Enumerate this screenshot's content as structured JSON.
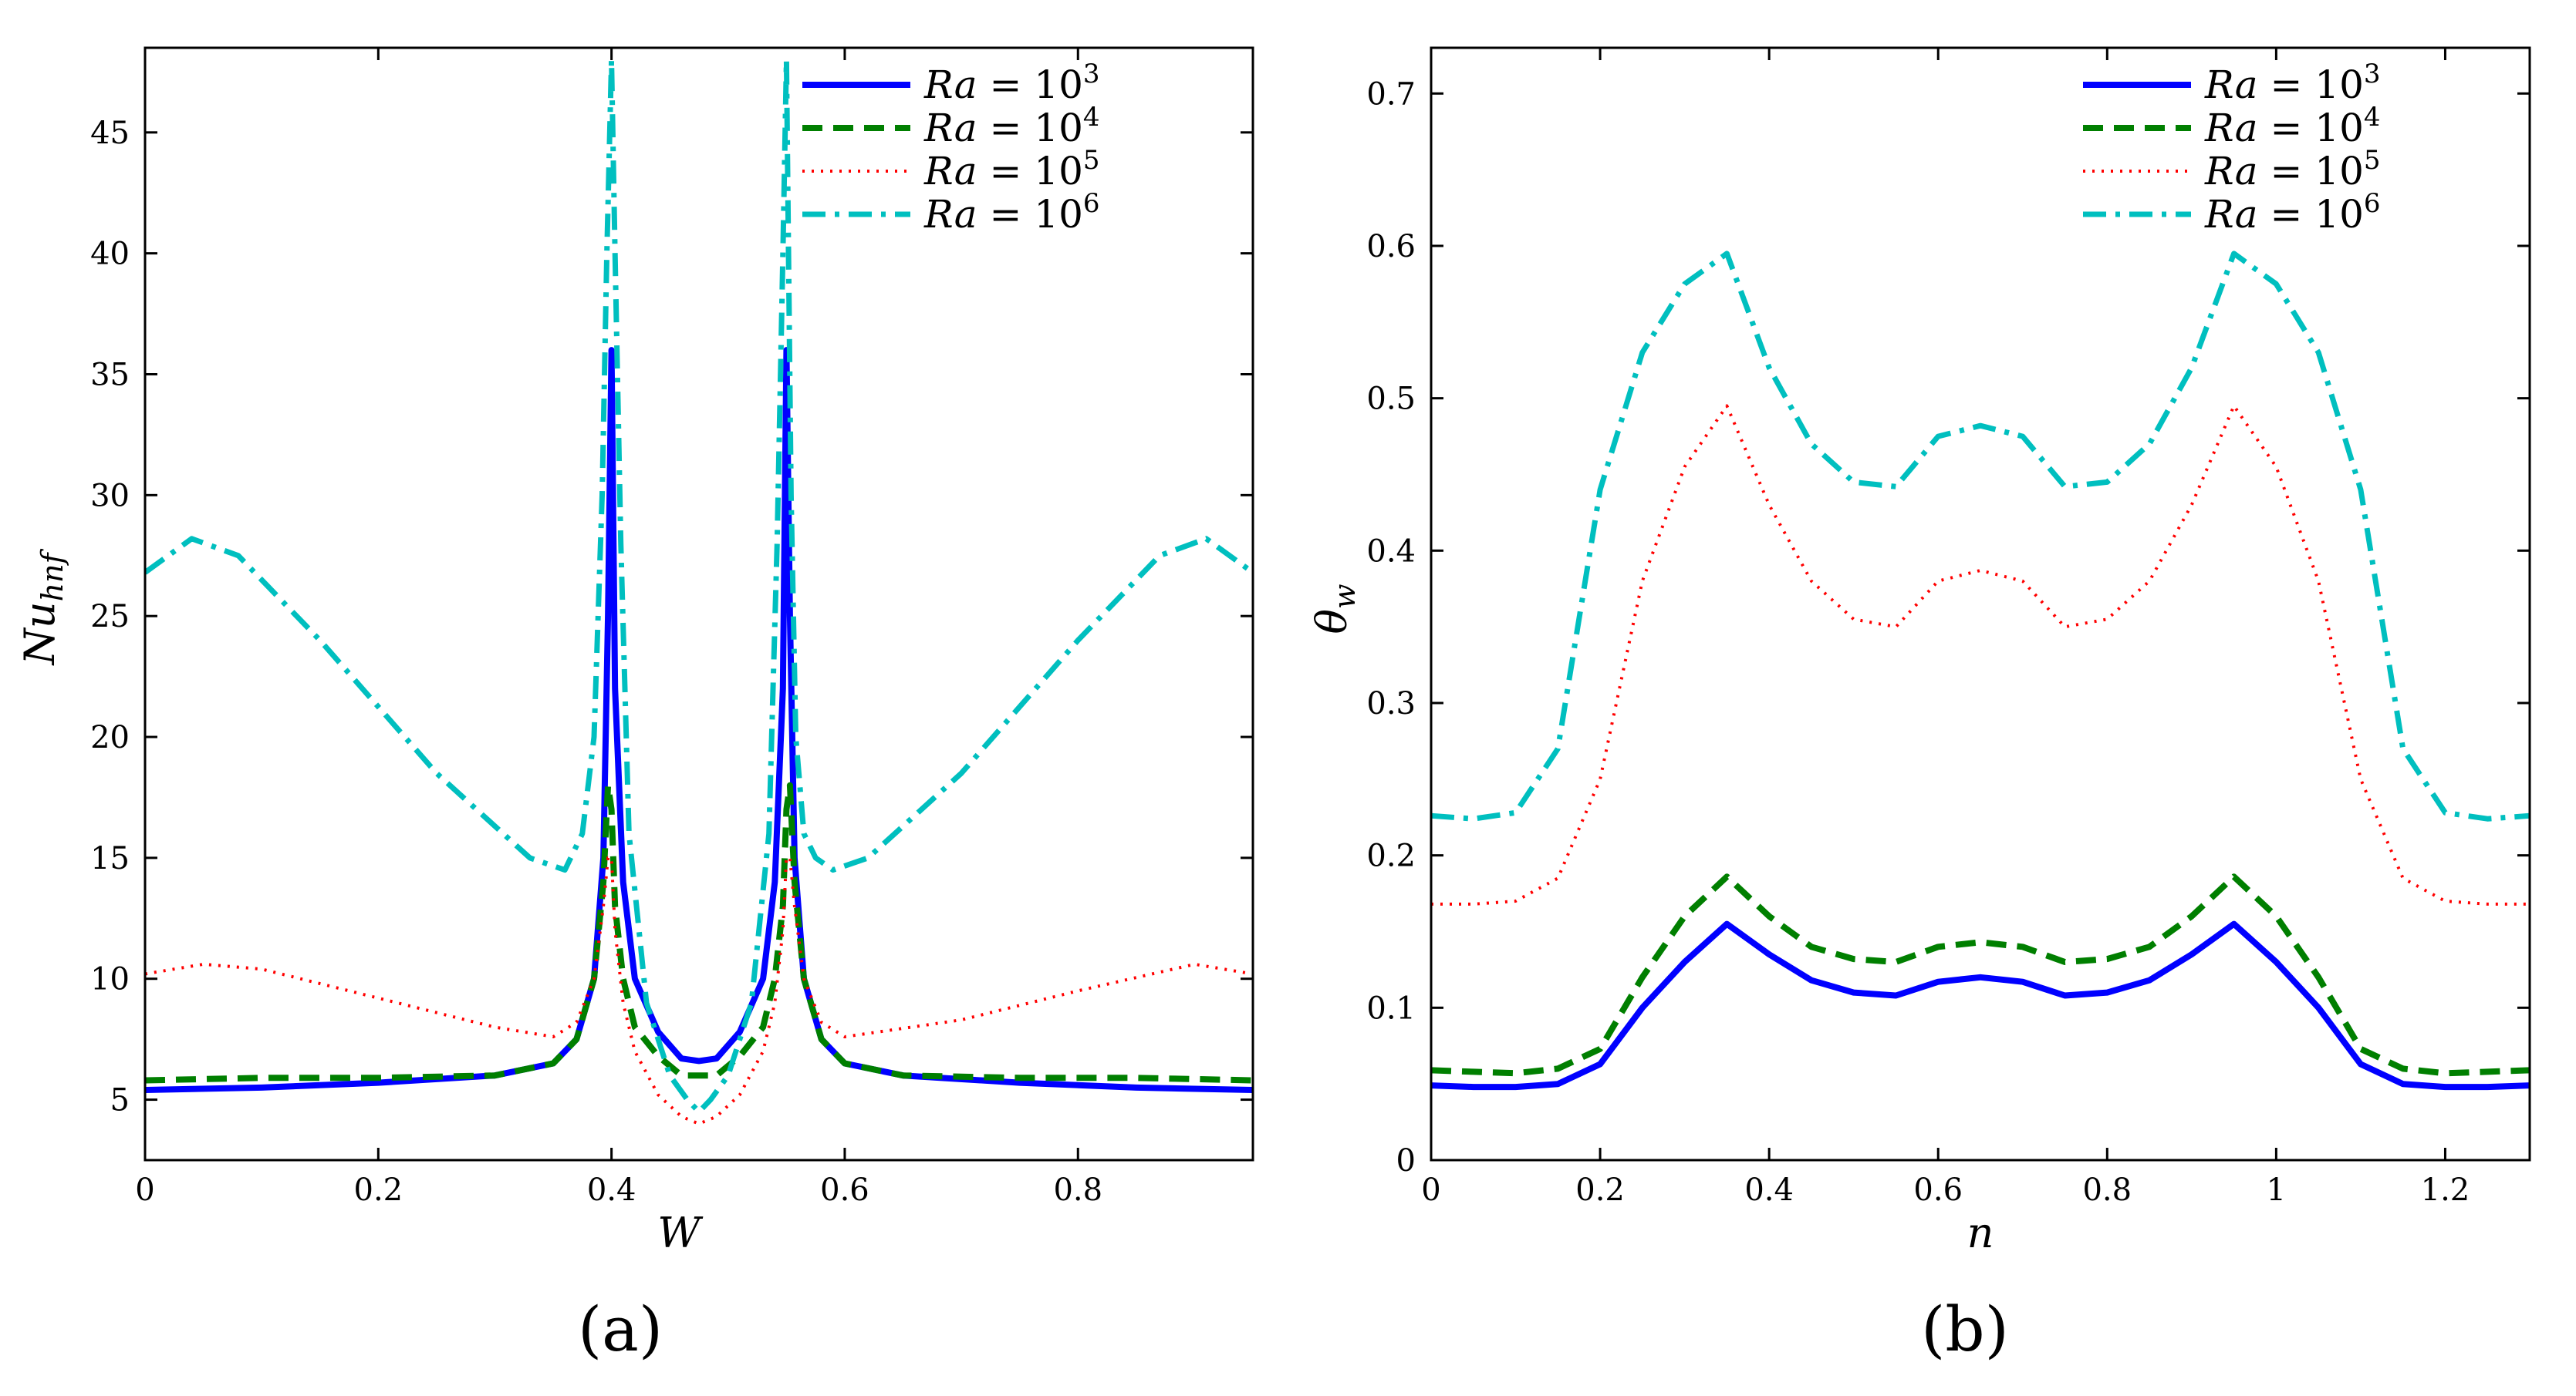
{
  "colors": {
    "ra3": "#0000ff",
    "ra4": "#007f00",
    "ra5": "#ff0000",
    "ra6": "#00bfbf"
  },
  "legend_entries": [
    {
      "prefix": "Ra",
      "mid": " = 10",
      "sup": "3"
    },
    {
      "prefix": "Ra",
      "mid": " = 10",
      "sup": "4"
    },
    {
      "prefix": "Ra",
      "mid": " = 10",
      "sup": "5"
    },
    {
      "prefix": "Ra",
      "mid": " = 10",
      "sup": "6"
    }
  ],
  "chart_data": [
    {
      "type": "line",
      "panel_label": "(a)",
      "xlabel": "W",
      "ylabel_main": "Nu",
      "ylabel_sub": "hnf",
      "xlim": [
        0,
        0.95
      ],
      "ylim": [
        2.5,
        48.5
      ],
      "xticks": [
        0,
        0.2,
        0.4,
        0.6,
        0.8
      ],
      "xtick_labels": [
        "0",
        "0.2",
        "0.4",
        "0.6",
        "0.8"
      ],
      "yticks": [
        5,
        10,
        15,
        20,
        25,
        30,
        35,
        40,
        45
      ],
      "ytick_labels": [
        "5",
        "10",
        "15",
        "20",
        "25",
        "30",
        "35",
        "40",
        "45"
      ],
      "legend_position": "top-right",
      "series": [
        {
          "name": "Ra = 10^3",
          "color_key": "ra3",
          "dash": "solid",
          "x": [
            0,
            0.1,
            0.2,
            0.3,
            0.35,
            0.37,
            0.385,
            0.393,
            0.397,
            0.4,
            0.403,
            0.41,
            0.42,
            0.44,
            0.46,
            0.475,
            0.49,
            0.51,
            0.53,
            0.54,
            0.547,
            0.55,
            0.553,
            0.557,
            0.565,
            0.58,
            0.6,
            0.65,
            0.75,
            0.85,
            0.95
          ],
          "y": [
            5.4,
            5.5,
            5.7,
            6.0,
            6.5,
            7.5,
            10,
            15,
            25,
            36,
            22,
            14,
            10,
            7.8,
            6.7,
            6.6,
            6.7,
            7.8,
            10,
            14,
            22,
            36,
            25,
            15,
            10,
            7.5,
            6.5,
            6.0,
            5.7,
            5.5,
            5.4
          ]
        },
        {
          "name": "Ra = 10^4",
          "color_key": "ra4",
          "dash": "dashed",
          "x": [
            0,
            0.1,
            0.2,
            0.3,
            0.35,
            0.37,
            0.385,
            0.393,
            0.397,
            0.4,
            0.403,
            0.41,
            0.42,
            0.44,
            0.46,
            0.475,
            0.49,
            0.51,
            0.53,
            0.54,
            0.547,
            0.55,
            0.553,
            0.557,
            0.565,
            0.58,
            0.6,
            0.65,
            0.75,
            0.85,
            0.95
          ],
          "y": [
            5.8,
            5.9,
            5.9,
            6.0,
            6.5,
            7.5,
            10,
            14,
            18,
            17,
            13,
            10,
            8,
            6.8,
            6.0,
            6.0,
            6.0,
            6.8,
            8,
            10,
            13,
            17,
            18,
            14,
            10,
            7.5,
            6.5,
            6.0,
            5.9,
            5.9,
            5.8
          ]
        },
        {
          "name": "Ra = 10^5",
          "color_key": "ra5",
          "dash": "dotted",
          "x": [
            0,
            0.05,
            0.1,
            0.2,
            0.3,
            0.35,
            0.37,
            0.385,
            0.393,
            0.397,
            0.4,
            0.403,
            0.41,
            0.42,
            0.44,
            0.46,
            0.475,
            0.49,
            0.51,
            0.53,
            0.54,
            0.547,
            0.55,
            0.553,
            0.557,
            0.565,
            0.58,
            0.6,
            0.7,
            0.8,
            0.9,
            0.95
          ],
          "y": [
            10.2,
            10.6,
            10.4,
            9.2,
            8.0,
            7.6,
            8.2,
            10,
            13,
            15,
            15,
            12,
            9,
            7,
            5.2,
            4.3,
            4.0,
            4.3,
            5.2,
            7,
            9,
            12,
            15,
            15,
            13,
            10,
            8.2,
            7.6,
            8.3,
            9.5,
            10.6,
            10.2
          ]
        },
        {
          "name": "Ra = 10^6",
          "color_key": "ra6",
          "dash": "dashdot",
          "x": [
            0,
            0.04,
            0.08,
            0.15,
            0.25,
            0.33,
            0.36,
            0.375,
            0.385,
            0.392,
            0.396,
            0.4,
            0.403,
            0.408,
            0.415,
            0.43,
            0.45,
            0.465,
            0.475,
            0.485,
            0.5,
            0.52,
            0.535,
            0.542,
            0.547,
            0.55,
            0.554,
            0.558,
            0.565,
            0.575,
            0.59,
            0.62,
            0.7,
            0.8,
            0.87,
            0.91,
            0.95
          ],
          "y": [
            26.8,
            28.2,
            27.5,
            24,
            18.5,
            15,
            14.5,
            16,
            20,
            30,
            40,
            48,
            40,
            28,
            16,
            9,
            6,
            5.0,
            4.5,
            5.0,
            6,
            9,
            16,
            28,
            40,
            48,
            30,
            20,
            16,
            15,
            14.5,
            15,
            18.5,
            24,
            27.5,
            28.2,
            26.8
          ]
        }
      ]
    },
    {
      "type": "line",
      "panel_label": "(b)",
      "xlabel": "n",
      "ylabel_main": "θ",
      "ylabel_sub": "w",
      "xlim": [
        0,
        1.3
      ],
      "ylim": [
        0,
        0.73
      ],
      "xticks": [
        0,
        0.2,
        0.4,
        0.6,
        0.8,
        1,
        1.2
      ],
      "xtick_labels": [
        "0",
        "0.2",
        "0.4",
        "0.6",
        "0.8",
        "1",
        "1.2"
      ],
      "yticks": [
        0,
        0.1,
        0.2,
        0.3,
        0.4,
        0.5,
        0.6,
        0.7
      ],
      "ytick_labels": [
        "0",
        "0.1",
        "0.2",
        "0.3",
        "0.4",
        "0.5",
        "0.6",
        "0.7"
      ],
      "legend_position": "top-right",
      "series": [
        {
          "name": "Ra = 10^3",
          "color_key": "ra3",
          "dash": "solid",
          "x": [
            0,
            0.05,
            0.1,
            0.15,
            0.2,
            0.25,
            0.3,
            0.35,
            0.4,
            0.45,
            0.5,
            0.55,
            0.6,
            0.65,
            0.7,
            0.75,
            0.8,
            0.85,
            0.9,
            0.95,
            1.0,
            1.05,
            1.1,
            1.15,
            1.2,
            1.25,
            1.3
          ],
          "y": [
            0.049,
            0.048,
            0.048,
            0.05,
            0.063,
            0.1,
            0.13,
            0.155,
            0.135,
            0.118,
            0.11,
            0.108,
            0.117,
            0.12,
            0.117,
            0.108,
            0.11,
            0.118,
            0.135,
            0.155,
            0.13,
            0.1,
            0.063,
            0.05,
            0.048,
            0.048,
            0.049
          ]
        },
        {
          "name": "Ra = 10^4",
          "color_key": "ra4",
          "dash": "dashed",
          "x": [
            0,
            0.05,
            0.1,
            0.15,
            0.2,
            0.25,
            0.3,
            0.35,
            0.4,
            0.45,
            0.5,
            0.55,
            0.6,
            0.65,
            0.7,
            0.75,
            0.8,
            0.85,
            0.9,
            0.95,
            1.0,
            1.05,
            1.1,
            1.15,
            1.2,
            1.25,
            1.3
          ],
          "y": [
            0.059,
            0.058,
            0.057,
            0.06,
            0.073,
            0.12,
            0.16,
            0.186,
            0.16,
            0.14,
            0.132,
            0.13,
            0.14,
            0.143,
            0.14,
            0.13,
            0.132,
            0.14,
            0.16,
            0.186,
            0.16,
            0.12,
            0.073,
            0.06,
            0.057,
            0.058,
            0.059
          ]
        },
        {
          "name": "Ra = 10^5",
          "color_key": "ra5",
          "dash": "dotted",
          "x": [
            0,
            0.05,
            0.1,
            0.15,
            0.2,
            0.25,
            0.3,
            0.35,
            0.4,
            0.45,
            0.5,
            0.55,
            0.6,
            0.65,
            0.7,
            0.75,
            0.8,
            0.85,
            0.9,
            0.95,
            1.0,
            1.05,
            1.1,
            1.15,
            1.2,
            1.25,
            1.3
          ],
          "y": [
            0.168,
            0.168,
            0.17,
            0.185,
            0.25,
            0.38,
            0.455,
            0.495,
            0.43,
            0.38,
            0.355,
            0.35,
            0.38,
            0.387,
            0.38,
            0.35,
            0.355,
            0.38,
            0.43,
            0.495,
            0.455,
            0.38,
            0.25,
            0.185,
            0.17,
            0.168,
            0.168
          ]
        },
        {
          "name": "Ra = 10^6",
          "color_key": "ra6",
          "dash": "dashdot",
          "x": [
            0,
            0.05,
            0.1,
            0.15,
            0.2,
            0.25,
            0.3,
            0.35,
            0.4,
            0.45,
            0.5,
            0.55,
            0.6,
            0.65,
            0.7,
            0.75,
            0.8,
            0.85,
            0.9,
            0.95,
            1.0,
            1.05,
            1.1,
            1.15,
            1.2,
            1.25,
            1.3
          ],
          "y": [
            0.226,
            0.224,
            0.228,
            0.27,
            0.44,
            0.53,
            0.575,
            0.595,
            0.52,
            0.47,
            0.445,
            0.442,
            0.475,
            0.482,
            0.475,
            0.442,
            0.445,
            0.47,
            0.52,
            0.595,
            0.575,
            0.53,
            0.44,
            0.27,
            0.228,
            0.224,
            0.226
          ]
        }
      ]
    }
  ]
}
